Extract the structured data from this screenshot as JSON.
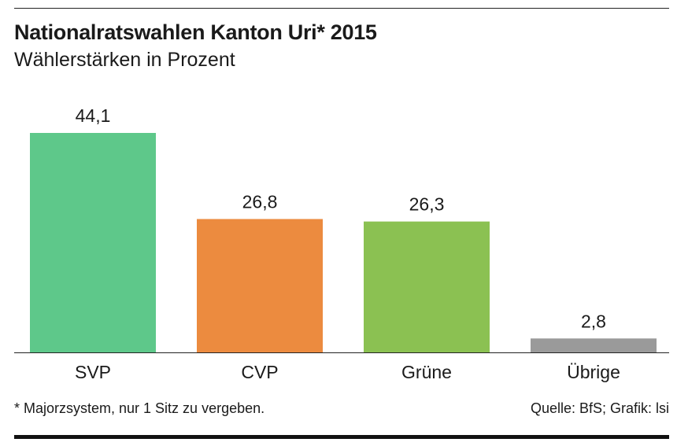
{
  "header": {
    "title": "Nationalratswahlen Kanton Uri* 2015",
    "subtitle": "Wählerstärken in Prozent"
  },
  "footer": {
    "footnote": "* Majorzsystem, nur 1 Sitz zu vergeben.",
    "source": "Quelle: BfS; Grafik: lsi"
  },
  "chart_data": {
    "type": "bar",
    "title": "Nationalratswahlen Kanton Uri* 2015",
    "subtitle": "Wählerstärken in Prozent",
    "categories": [
      "SVP",
      "CVP",
      "Grüne",
      "Übrige"
    ],
    "values": [
      44.1,
      26.8,
      26.3,
      2.8
    ],
    "value_labels": [
      "44,1",
      "26,8",
      "26,3",
      "2,8"
    ],
    "colors": [
      "#5ec88a",
      "#ec8b3f",
      "#8bc152",
      "#9a9a9a"
    ],
    "xlabel": "",
    "ylabel": "",
    "ylim": [
      0,
      44.1
    ],
    "grid": false,
    "legend": "none"
  }
}
